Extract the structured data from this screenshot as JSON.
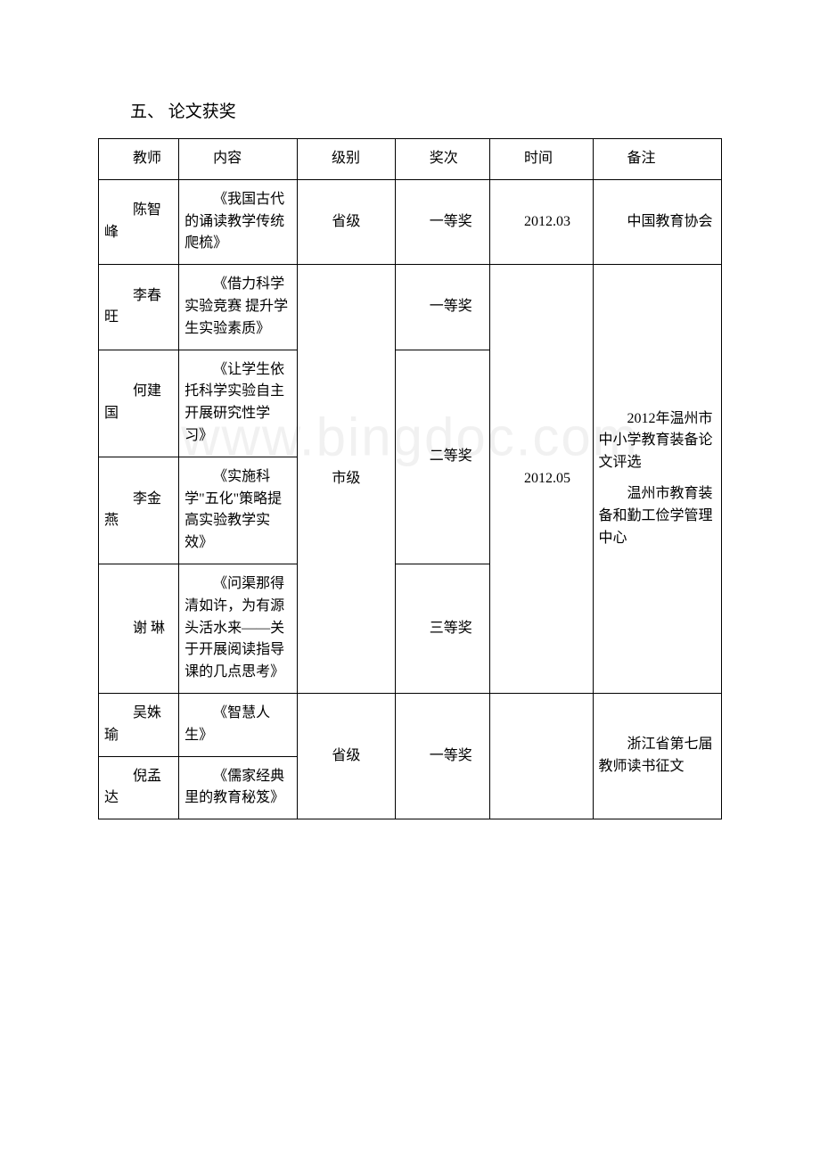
{
  "watermark": "www.bingdoc.com",
  "title": "五、 论文获奖",
  "headers": {
    "teacher": "教师",
    "content": "内容",
    "level": "级别",
    "rank": "奖次",
    "time": "时间",
    "remark": "备注"
  },
  "rows": {
    "r1": {
      "teacher": "陈智峰",
      "content": "《我国古代的诵读教学传统爬梳》",
      "level": "省级",
      "rank": "一等奖",
      "time": "2012.03",
      "remark": "中国教育协会"
    },
    "r2": {
      "teacher": "李春旺",
      "content": "《借力科学实验竞赛 提升学生实验素质》",
      "rank": "一等奖"
    },
    "r3": {
      "teacher": "何建国",
      "content": "《让学生依托科学实验自主开展研究性学习》"
    },
    "r4": {
      "teacher": "李金燕",
      "content": "《实施科学\"五化\"策略提高实验教学实效》",
      "level": "市级",
      "rank": "二等奖",
      "time": "2012.05",
      "remark_p1": "2012年温州市中小学教育装备论文评选",
      "remark_p2": "温州市教育装备和勤工俭学管理中心"
    },
    "r5": {
      "teacher": "谢 琳",
      "content": "《问渠那得清如许，为有源头活水来——关于开展阅读指导课的几点思考》",
      "rank": "三等奖"
    },
    "r6": {
      "teacher": "吴姝瑜",
      "content": "《智慧人生》"
    },
    "r7": {
      "teacher": "倪孟达",
      "content": "《儒家经典里的教育秘笈》",
      "level": "省级",
      "rank": "一等奖",
      "remark": "浙江省第七届教师读书征文"
    }
  }
}
